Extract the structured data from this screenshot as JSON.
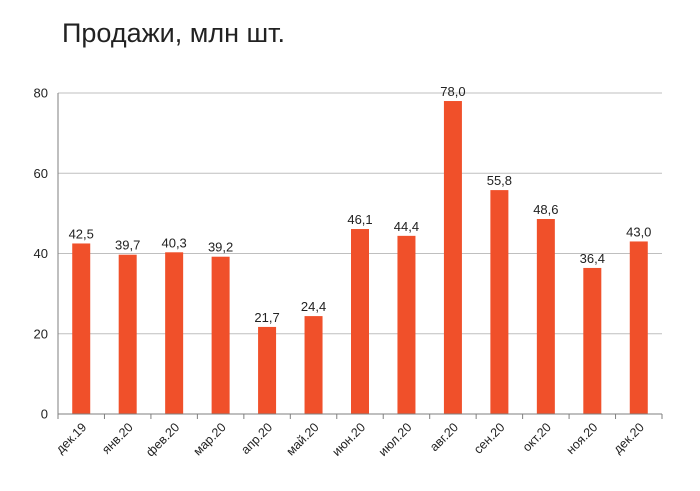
{
  "chart_data": {
    "type": "bar",
    "title": "Продажи, млн шт.",
    "xlabel": "",
    "ylabel": "",
    "categories": [
      "дек.19",
      "янв.20",
      "фев.20",
      "мар.20",
      "апр.20",
      "май.20",
      "июн.20",
      "июл.20",
      "авг.20",
      "сен.20",
      "окт.20",
      "ноя.20",
      "дек.20"
    ],
    "values": [
      42.5,
      39.7,
      40.3,
      39.2,
      21.7,
      24.4,
      46.1,
      44.4,
      78.0,
      55.8,
      48.6,
      36.4,
      43.0
    ],
    "value_labels": [
      "42,5",
      "39,7",
      "40,3",
      "39,2",
      "21,7",
      "24,4",
      "46,1",
      "44,4",
      "78,0",
      "55,8",
      "48,6",
      "36,4",
      "43,0"
    ],
    "ylim": [
      0,
      80
    ],
    "yticks": [
      0,
      20,
      40,
      60,
      80
    ],
    "grid": true,
    "legend": "none",
    "bar_color": "#F0502A",
    "grid_color": "#BFBFBF",
    "axis_color": "#7F7F7F"
  }
}
